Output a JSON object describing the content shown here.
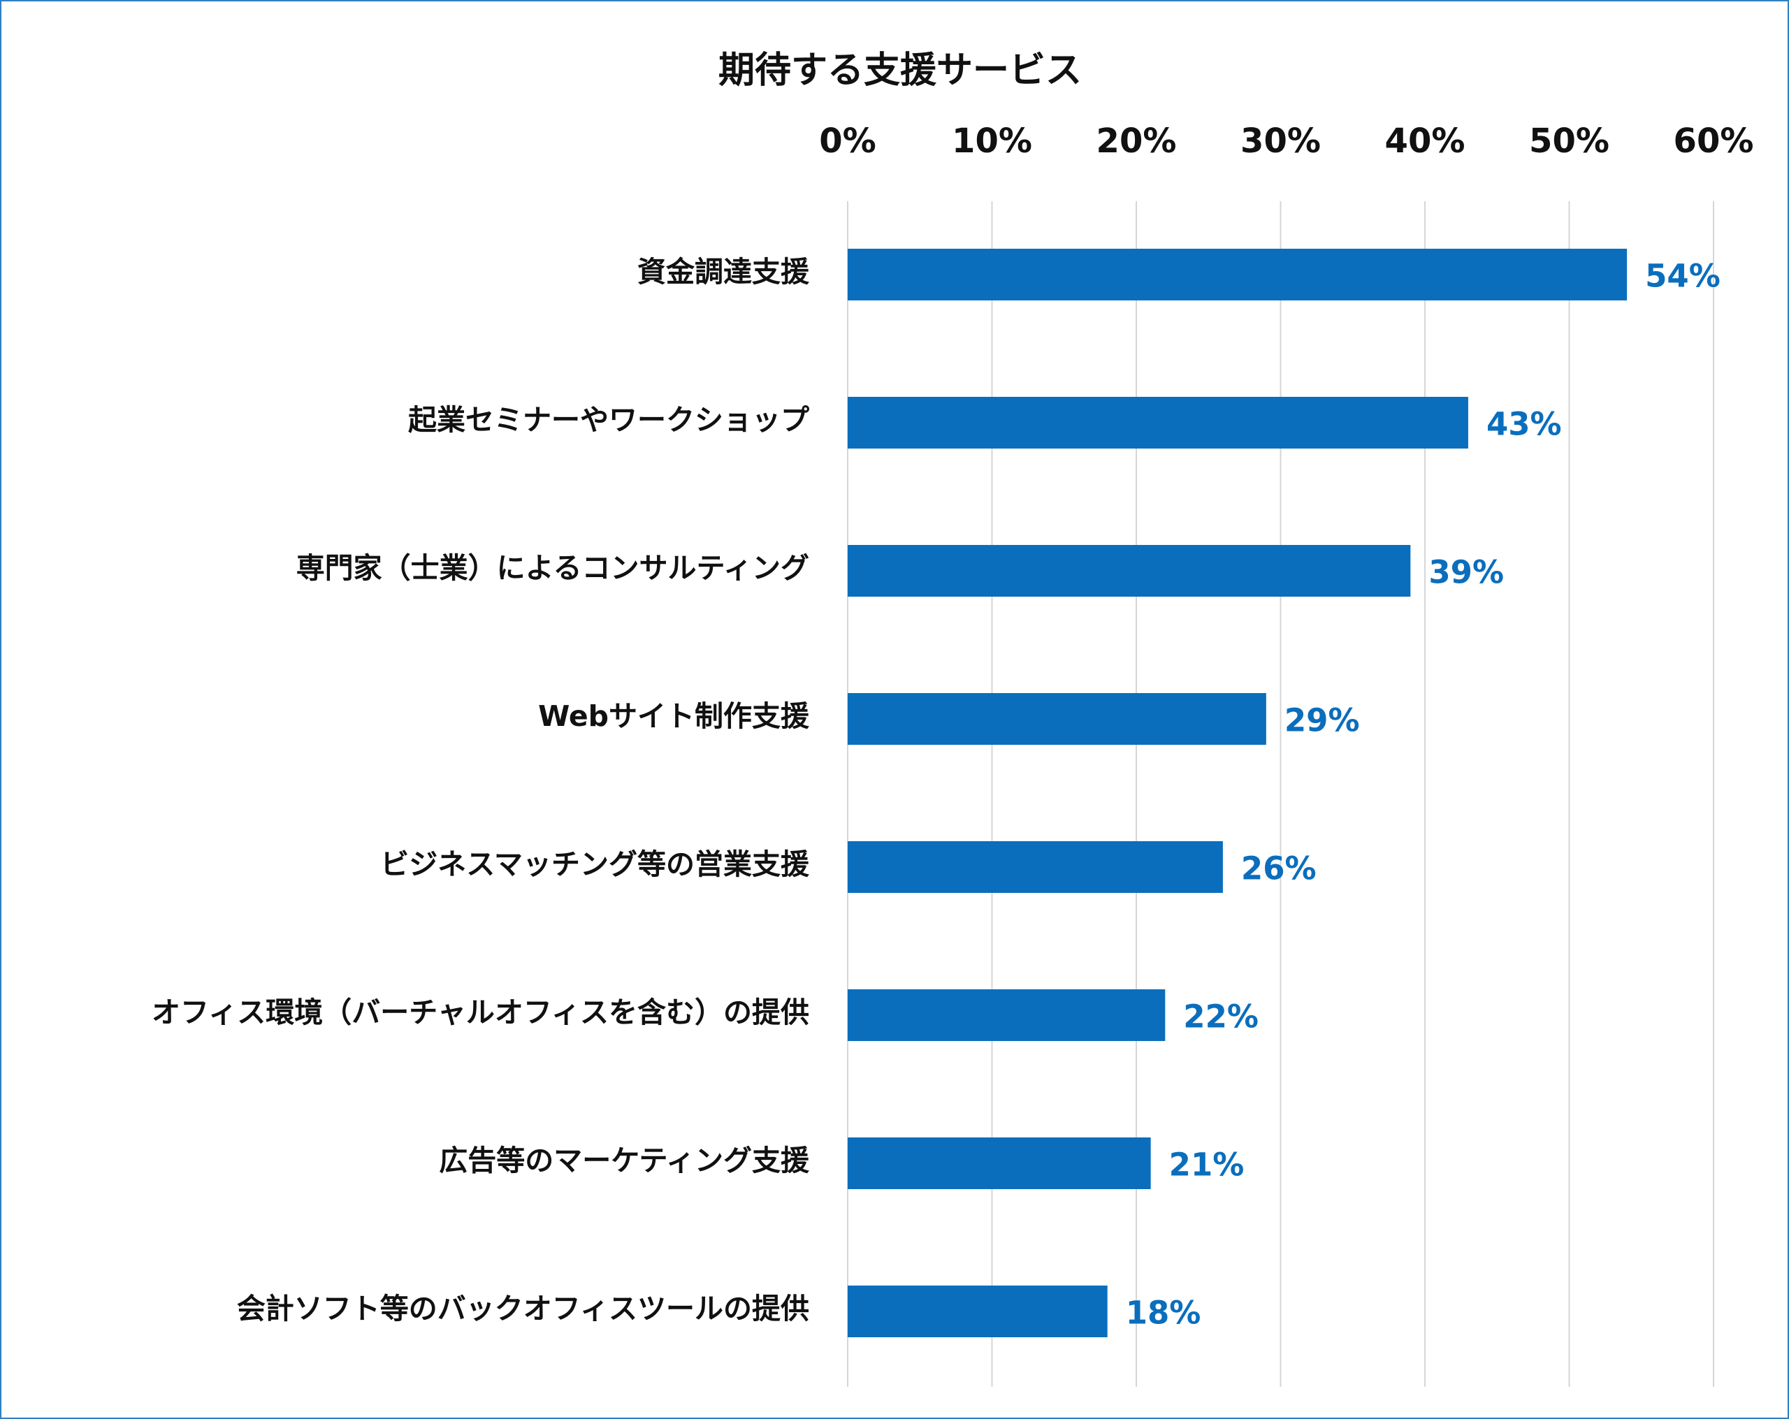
{
  "chart_data": {
    "type": "bar",
    "orientation": "horizontal",
    "title": "期待する支援サービス",
    "categories": [
      "資金調達支援",
      "起業セミナーやワークショップ",
      "専門家（士業）によるコンサルティング",
      "Webサイト制作支援",
      "ビジネスマッチング等の営業支援",
      "オフィス環境（バーチャルオフィスを含む）の提供",
      "広告等のマーケティング支援",
      "会計ソフト等のバックオフィスツールの提供"
    ],
    "values": [
      54,
      43,
      39,
      29,
      26,
      22,
      21,
      18
    ],
    "value_labels": [
      "54%",
      "43%",
      "39%",
      "29%",
      "26%",
      "22%",
      "21%",
      "18%"
    ],
    "xlim": [
      0,
      60
    ],
    "x_ticks": [
      0,
      10,
      20,
      30,
      40,
      50,
      60
    ],
    "x_tick_labels": [
      "0%",
      "10%",
      "20%",
      "30%",
      "40%",
      "50%",
      "60%"
    ],
    "axis_position": "top",
    "grid": true,
    "legend": "none",
    "colors": {
      "bar": "#0a6ebd",
      "data_label": "#0a6ebd",
      "grid": "#d6d6d6",
      "frame": "#2f7fc1",
      "text": "#111111"
    }
  }
}
